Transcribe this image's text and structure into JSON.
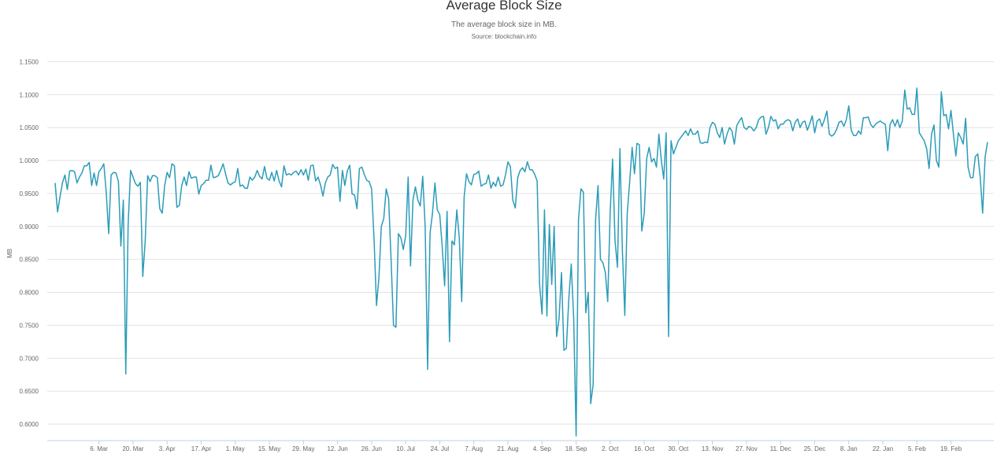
{
  "chart_data": {
    "type": "line",
    "title": "Average Block Size",
    "subtitle": "The average block size in MB.",
    "source": "Source: blockchain.info",
    "ylabel": "MB",
    "xlabel": "",
    "ylim": [
      0.575,
      1.16
    ],
    "yticks": [
      0.6,
      0.65,
      0.7,
      0.75,
      0.8,
      0.85,
      0.9,
      0.95,
      1.0,
      1.05,
      1.1,
      1.15
    ],
    "ytick_labels": [
      "0.6000",
      "0.6500",
      "0.7000",
      "0.7500",
      "0.8000",
      "0.8500",
      "0.9000",
      "0.9500",
      "1.0000",
      "1.0500",
      "1.1000",
      "1.1500"
    ],
    "xticks": [
      "6. Mar",
      "20. Mar",
      "3. Apr",
      "17. Apr",
      "1. May",
      "15. May",
      "29. May",
      "12. Jun",
      "26. Jun",
      "10. Jul",
      "24. Jul",
      "7. Aug",
      "21. Aug",
      "4. Sep",
      "18. Sep",
      "2. Oct",
      "16. Oct",
      "30. Oct",
      "13. Nov",
      "27. Nov",
      "11. Dec",
      "25. Dec",
      "8. Jan",
      "22. Jan",
      "5. Feb",
      "19. Feb"
    ],
    "grid": true,
    "color": "#2b9cb8",
    "points": [
      [
        0,
        0.966
      ],
      [
        1,
        0.922
      ],
      [
        2,
        0.945
      ],
      [
        3,
        0.966
      ],
      [
        4,
        0.978
      ],
      [
        5,
        0.956
      ],
      [
        6,
        0.984
      ],
      [
        7,
        0.985
      ],
      [
        8,
        0.983
      ],
      [
        9,
        0.966
      ],
      [
        10,
        0.975
      ],
      [
        11,
        0.981
      ],
      [
        12,
        0.992
      ],
      [
        13,
        0.992
      ],
      [
        14,
        0.997
      ],
      [
        15,
        0.962
      ],
      [
        16,
        0.981
      ],
      [
        17,
        0.962
      ],
      [
        18,
        0.983
      ],
      [
        19,
        0.988
      ],
      [
        20,
        0.995
      ],
      [
        21,
        0.952
      ],
      [
        22,
        0.889
      ],
      [
        23,
        0.978
      ],
      [
        24,
        0.982
      ],
      [
        25,
        0.981
      ],
      [
        26,
        0.968
      ],
      [
        27,
        0.87
      ],
      [
        28,
        0.94
      ],
      [
        29,
        0.676
      ],
      [
        30,
        0.902
      ],
      [
        31,
        0.985
      ],
      [
        32,
        0.975
      ],
      [
        33,
        0.965
      ],
      [
        34,
        0.961
      ],
      [
        35,
        0.967
      ],
      [
        36,
        0.824
      ],
      [
        37,
        0.878
      ],
      [
        38,
        0.977
      ],
      [
        39,
        0.968
      ],
      [
        40,
        0.977
      ],
      [
        41,
        0.977
      ],
      [
        42,
        0.974
      ],
      [
        43,
        0.927
      ],
      [
        44,
        0.92
      ],
      [
        45,
        0.962
      ],
      [
        46,
        0.982
      ],
      [
        47,
        0.974
      ],
      [
        48,
        0.995
      ],
      [
        49,
        0.992
      ],
      [
        50,
        0.929
      ],
      [
        51,
        0.932
      ],
      [
        52,
        0.962
      ],
      [
        53,
        0.975
      ],
      [
        54,
        0.962
      ],
      [
        55,
        0.983
      ],
      [
        56,
        0.973
      ],
      [
        57,
        0.975
      ],
      [
        58,
        0.975
      ],
      [
        59,
        0.949
      ],
      [
        60,
        0.962
      ],
      [
        61,
        0.965
      ],
      [
        62,
        0.97
      ],
      [
        63,
        0.97
      ],
      [
        64,
        0.993
      ],
      [
        65,
        0.974
      ],
      [
        66,
        0.975
      ],
      [
        67,
        0.977
      ],
      [
        68,
        0.985
      ],
      [
        69,
        0.995
      ],
      [
        70,
        0.98
      ],
      [
        71,
        0.966
      ],
      [
        72,
        0.963
      ],
      [
        73,
        0.966
      ],
      [
        74,
        0.968
      ],
      [
        75,
        0.988
      ],
      [
        76,
        0.961
      ],
      [
        77,
        0.963
      ],
      [
        78,
        0.958
      ],
      [
        79,
        0.958
      ],
      [
        80,
        0.975
      ],
      [
        81,
        0.97
      ],
      [
        82,
        0.975
      ],
      [
        83,
        0.985
      ],
      [
        84,
        0.976
      ],
      [
        85,
        0.972
      ],
      [
        86,
        0.991
      ],
      [
        87,
        0.973
      ],
      [
        88,
        0.97
      ],
      [
        89,
        0.982
      ],
      [
        90,
        0.969
      ],
      [
        91,
        0.985
      ],
      [
        92,
        0.969
      ],
      [
        93,
        0.96
      ],
      [
        94,
        0.992
      ],
      [
        95,
        0.978
      ],
      [
        96,
        0.98
      ],
      [
        97,
        0.978
      ],
      [
        98,
        0.982
      ],
      [
        99,
        0.984
      ],
      [
        100,
        0.978
      ],
      [
        101,
        0.986
      ],
      [
        102,
        0.978
      ],
      [
        103,
        0.987
      ],
      [
        104,
        0.97
      ],
      [
        105,
        0.992
      ],
      [
        106,
        0.993
      ],
      [
        107,
        0.969
      ],
      [
        108,
        0.975
      ],
      [
        109,
        0.963
      ],
      [
        110,
        0.946
      ],
      [
        111,
        0.966
      ],
      [
        112,
        0.975
      ],
      [
        113,
        0.978
      ],
      [
        114,
        0.994
      ],
      [
        115,
        0.988
      ],
      [
        116,
        0.99
      ],
      [
        117,
        0.938
      ],
      [
        118,
        0.985
      ],
      [
        119,
        0.962
      ],
      [
        120,
        0.984
      ],
      [
        121,
        0.993
      ],
      [
        122,
        0.949
      ],
      [
        123,
        0.948
      ],
      [
        124,
        0.927
      ],
      [
        125,
        0.988
      ],
      [
        126,
        0.99
      ],
      [
        127,
        0.979
      ],
      [
        128,
        0.97
      ],
      [
        129,
        0.968
      ],
      [
        130,
        0.957
      ],
      [
        131,
        0.88
      ],
      [
        132,
        0.78
      ],
      [
        133,
        0.823
      ],
      [
        134,
        0.9
      ],
      [
        135,
        0.912
      ],
      [
        136,
        0.957
      ],
      [
        137,
        0.942
      ],
      [
        138,
        0.85
      ],
      [
        139,
        0.75
      ],
      [
        140,
        0.747
      ],
      [
        141,
        0.889
      ],
      [
        142,
        0.883
      ],
      [
        143,
        0.865
      ],
      [
        144,
        0.886
      ],
      [
        145,
        0.975
      ],
      [
        146,
        0.84
      ],
      [
        147,
        0.94
      ],
      [
        148,
        0.96
      ],
      [
        149,
        0.94
      ],
      [
        150,
        0.931
      ],
      [
        151,
        0.976
      ],
      [
        152,
        0.9
      ],
      [
        153,
        0.683
      ],
      [
        154,
        0.89
      ],
      [
        155,
        0.92
      ],
      [
        156,
        0.966
      ],
      [
        157,
        0.925
      ],
      [
        158,
        0.918
      ],
      [
        159,
        0.87
      ],
      [
        160,
        0.81
      ],
      [
        161,
        0.923
      ],
      [
        162,
        0.725
      ],
      [
        163,
        0.878
      ],
      [
        164,
        0.872
      ],
      [
        165,
        0.925
      ],
      [
        166,
        0.883
      ],
      [
        167,
        0.786
      ],
      [
        168,
        0.945
      ],
      [
        169,
        0.98
      ],
      [
        170,
        0.968
      ],
      [
        171,
        0.963
      ],
      [
        172,
        0.979
      ],
      [
        173,
        0.98
      ],
      [
        174,
        0.984
      ],
      [
        175,
        0.961
      ],
      [
        176,
        0.964
      ],
      [
        177,
        0.965
      ],
      [
        178,
        0.978
      ],
      [
        179,
        0.958
      ],
      [
        180,
        0.967
      ],
      [
        181,
        0.961
      ],
      [
        182,
        0.975
      ],
      [
        183,
        0.961
      ],
      [
        184,
        0.963
      ],
      [
        185,
        0.978
      ],
      [
        186,
        0.998
      ],
      [
        187,
        0.991
      ],
      [
        188,
        0.94
      ],
      [
        189,
        0.928
      ],
      [
        190,
        0.974
      ],
      [
        191,
        0.985
      ],
      [
        192,
        0.989
      ],
      [
        193,
        0.983
      ],
      [
        194,
        0.998
      ],
      [
        195,
        0.986
      ],
      [
        196,
        0.986
      ],
      [
        197,
        0.979
      ],
      [
        198,
        0.969
      ],
      [
        199,
        0.812
      ],
      [
        200,
        0.767
      ],
      [
        201,
        0.925
      ],
      [
        202,
        0.764
      ],
      [
        203,
        0.903
      ],
      [
        204,
        0.812
      ],
      [
        205,
        0.9
      ],
      [
        206,
        0.733
      ],
      [
        207,
        0.76
      ],
      [
        208,
        0.83
      ],
      [
        209,
        0.712
      ],
      [
        210,
        0.715
      ],
      [
        211,
        0.79
      ],
      [
        212,
        0.843
      ],
      [
        213,
        0.76
      ],
      [
        214,
        0.582
      ],
      [
        215,
        0.91
      ],
      [
        216,
        0.957
      ],
      [
        217,
        0.952
      ],
      [
        218,
        0.769
      ],
      [
        219,
        0.8
      ],
      [
        220,
        0.631
      ],
      [
        221,
        0.66
      ],
      [
        222,
        0.91
      ],
      [
        223,
        0.962
      ],
      [
        224,
        0.85
      ],
      [
        225,
        0.845
      ],
      [
        226,
        0.83
      ],
      [
        227,
        0.786
      ],
      [
        228,
        0.92
      ],
      [
        229,
        1.002
      ],
      [
        230,
        0.878
      ],
      [
        231,
        0.838
      ],
      [
        232,
        1.018
      ],
      [
        233,
        0.865
      ],
      [
        234,
        0.765
      ],
      [
        235,
        0.92
      ],
      [
        236,
        0.968
      ],
      [
        237,
        1.02
      ],
      [
        238,
        0.98
      ],
      [
        239,
        1.026
      ],
      [
        240,
        1.024
      ],
      [
        241,
        0.893
      ],
      [
        242,
        0.92
      ],
      [
        243,
        1.003
      ],
      [
        244,
        1.02
      ],
      [
        245,
        0.998
      ],
      [
        246,
        1.003
      ],
      [
        247,
        0.99
      ],
      [
        248,
        1.04
      ],
      [
        249,
        1.0
      ],
      [
        250,
        0.972
      ],
      [
        251,
        1.042
      ],
      [
        252,
        0.733
      ],
      [
        253,
        1.03
      ],
      [
        254,
        1.01
      ],
      [
        255,
        1.02
      ],
      [
        256,
        1.03
      ],
      [
        257,
        1.035
      ],
      [
        258,
        1.04
      ],
      [
        259,
        1.045
      ],
      [
        260,
        1.038
      ],
      [
        261,
        1.048
      ],
      [
        262,
        1.04
      ],
      [
        263,
        1.04
      ],
      [
        264,
        1.045
      ],
      [
        265,
        1.027
      ],
      [
        266,
        1.026
      ],
      [
        267,
        1.028
      ],
      [
        268,
        1.027
      ],
      [
        269,
        1.05
      ],
      [
        270,
        1.058
      ],
      [
        271,
        1.055
      ],
      [
        272,
        1.042
      ],
      [
        273,
        1.035
      ],
      [
        274,
        1.05
      ],
      [
        275,
        1.025
      ],
      [
        276,
        1.04
      ],
      [
        277,
        1.05
      ],
      [
        278,
        1.045
      ],
      [
        279,
        1.025
      ],
      [
        280,
        1.053
      ],
      [
        281,
        1.06
      ],
      [
        282,
        1.065
      ],
      [
        283,
        1.05
      ],
      [
        284,
        1.047
      ],
      [
        285,
        1.052
      ],
      [
        286,
        1.05
      ],
      [
        287,
        1.045
      ],
      [
        288,
        1.05
      ],
      [
        289,
        1.062
      ],
      [
        290,
        1.066
      ],
      [
        291,
        1.067
      ],
      [
        292,
        1.04
      ],
      [
        293,
        1.05
      ],
      [
        294,
        1.067
      ],
      [
        295,
        1.06
      ],
      [
        296,
        1.062
      ],
      [
        297,
        1.048
      ],
      [
        298,
        1.055
      ],
      [
        299,
        1.055
      ],
      [
        300,
        1.06
      ],
      [
        301,
        1.062
      ],
      [
        302,
        1.06
      ],
      [
        303,
        1.045
      ],
      [
        304,
        1.058
      ],
      [
        305,
        1.063
      ],
      [
        306,
        1.05
      ],
      [
        307,
        1.058
      ],
      [
        308,
        1.06
      ],
      [
        309,
        1.046
      ],
      [
        310,
        1.056
      ],
      [
        311,
        1.068
      ],
      [
        312,
        1.042
      ],
      [
        313,
        1.06
      ],
      [
        314,
        1.063
      ],
      [
        315,
        1.052
      ],
      [
        316,
        1.062
      ],
      [
        317,
        1.075
      ],
      [
        318,
        1.04
      ],
      [
        319,
        1.037
      ],
      [
        320,
        1.04
      ],
      [
        321,
        1.047
      ],
      [
        322,
        1.058
      ],
      [
        323,
        1.06
      ],
      [
        324,
        1.052
      ],
      [
        325,
        1.062
      ],
      [
        326,
        1.083
      ],
      [
        327,
        1.046
      ],
      [
        328,
        1.038
      ],
      [
        329,
        1.038
      ],
      [
        330,
        1.045
      ],
      [
        331,
        1.04
      ],
      [
        332,
        1.065
      ],
      [
        333,
        1.065
      ],
      [
        334,
        1.066
      ],
      [
        335,
        1.055
      ],
      [
        336,
        1.05
      ],
      [
        337,
        1.055
      ],
      [
        338,
        1.058
      ],
      [
        339,
        1.06
      ],
      [
        340,
        1.057
      ],
      [
        341,
        1.055
      ],
      [
        342,
        1.015
      ],
      [
        343,
        1.055
      ],
      [
        344,
        1.062
      ],
      [
        345,
        1.052
      ],
      [
        346,
        1.062
      ],
      [
        347,
        1.05
      ],
      [
        348,
        1.06
      ],
      [
        349,
        1.107
      ],
      [
        350,
        1.078
      ],
      [
        351,
        1.08
      ],
      [
        352,
        1.07
      ],
      [
        353,
        1.07
      ],
      [
        354,
        1.11
      ],
      [
        355,
        1.042
      ],
      [
        356,
        1.036
      ],
      [
        357,
        1.03
      ],
      [
        358,
        1.018
      ],
      [
        359,
        0.988
      ],
      [
        360,
        1.04
      ],
      [
        361,
        1.054
      ],
      [
        362,
        1.0
      ],
      [
        363,
        0.99
      ],
      [
        364,
        1.104
      ],
      [
        365,
        1.068
      ],
      [
        366,
        1.07
      ],
      [
        367,
        1.048
      ],
      [
        368,
        1.076
      ],
      [
        369,
        1.04
      ],
      [
        370,
        1.007
      ],
      [
        371,
        1.042
      ],
      [
        372,
        1.035
      ],
      [
        373,
        1.025
      ],
      [
        374,
        1.064
      ],
      [
        375,
        0.99
      ],
      [
        376,
        0.974
      ],
      [
        377,
        0.974
      ],
      [
        378,
        1.006
      ],
      [
        379,
        1.01
      ],
      [
        380,
        0.975
      ],
      [
        381,
        0.92
      ],
      [
        382,
        1.005
      ],
      [
        383,
        1.028
      ]
    ]
  }
}
